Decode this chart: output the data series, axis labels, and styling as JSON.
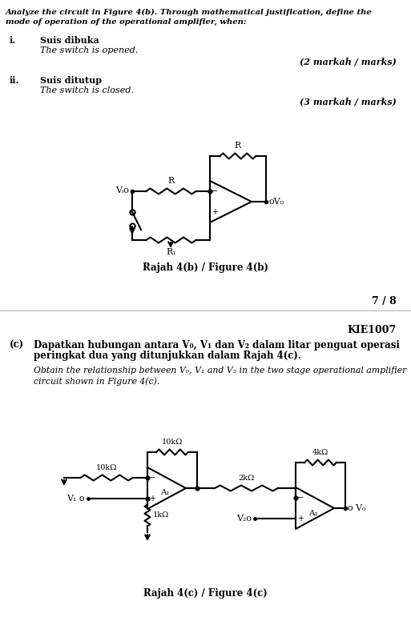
{
  "bg_color": "#ffffff",
  "fig_width": 5.13,
  "fig_height": 7.86,
  "dpi": 100,
  "top_line1": "Analyze the circuit in Figure 4(b). Through mathematical justification, define the",
  "top_line2": "mode of operation of the operational amplifier, when:",
  "i_label": "Suis dibuka",
  "i_italic": "The switch is opened.",
  "i_marks": "(2 markah / marks)",
  "ii_label": "Suis ditutup",
  "ii_italic": "The switch is closed.",
  "ii_marks": "(3 markah / marks)",
  "fig4b_caption": "Rajah 4(b) / Figure 4(b)",
  "page_num": "7 / 8",
  "header": "KIE1007",
  "c_label": "(c)",
  "c_bold_line1": "Dapatkan hubungan antara V₀, V₁ dan V₂ dalam litar penguat operasi",
  "c_bold_line2": "peringkat dua yang ditunjukkan dalam Rajah 4(c).",
  "c_italic_line1": "Obtain the relationship between V₀, V₁ and V₂ in the two stage operational amplifier",
  "c_italic_line2": "circuit shown in Figure 4(c).",
  "fig4c_caption": "Rajah 4(c) / Figure 4(c)"
}
